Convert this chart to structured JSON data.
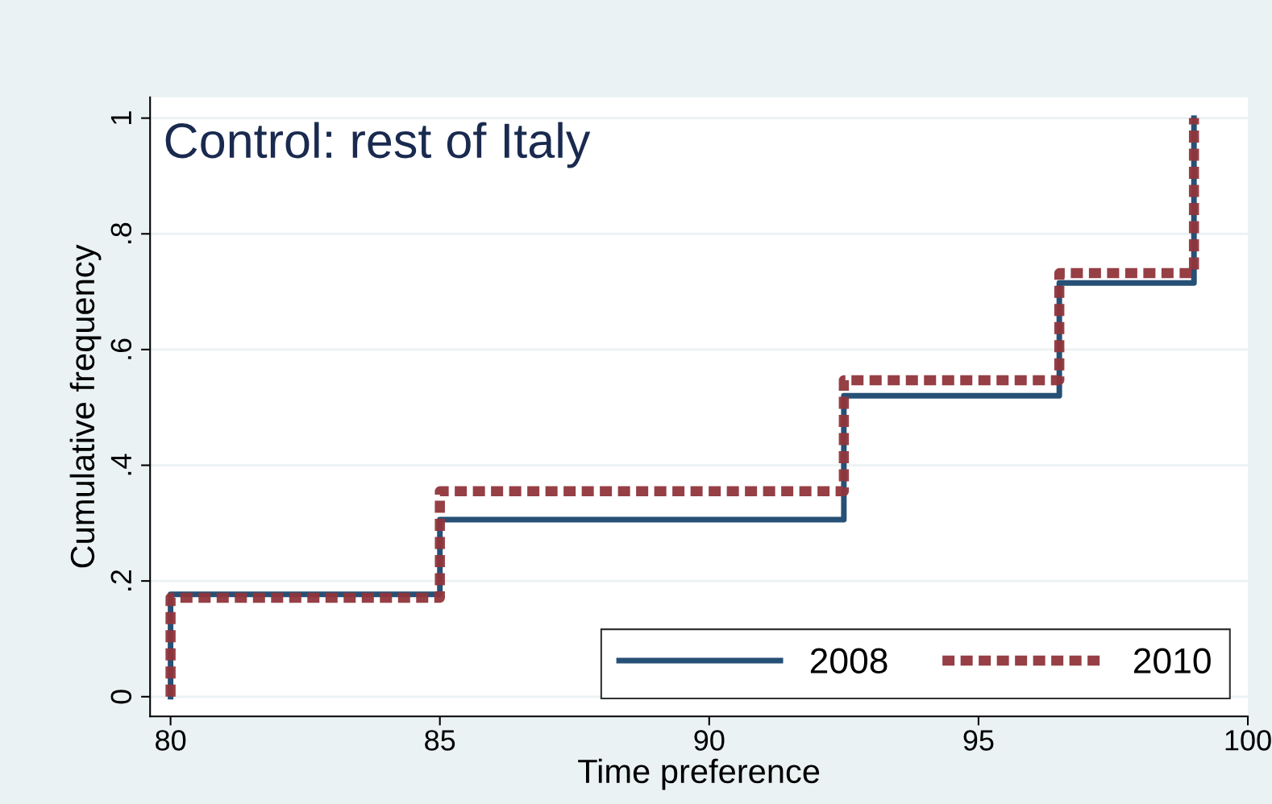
{
  "chart_data": {
    "type": "step",
    "title": "Control: rest of Italy",
    "xlabel": "Time preference",
    "ylabel": "Cumulative frequency",
    "xlim": [
      79.62,
      100
    ],
    "xticks": [
      80,
      85,
      90,
      95,
      100
    ],
    "ylim": [
      -0.034,
      1.036
    ],
    "yticks": [
      {
        "value": 0,
        "label": "0"
      },
      {
        "value": 0.2,
        "label": ".2"
      },
      {
        "value": 0.4,
        "label": ".4"
      },
      {
        "value": 0.6,
        "label": ".6"
      },
      {
        "value": 0.8,
        "label": ".8"
      },
      {
        "value": 1,
        "label": "1"
      }
    ],
    "grid": "y",
    "legend": "bottom right",
    "series": [
      {
        "name": "2008",
        "color": "#1a476f",
        "line_style": "solid",
        "x": [
          80,
          80,
          85,
          92.5,
          96.5,
          99
        ],
        "values": [
          0,
          0.177,
          0.306,
          0.52,
          0.715,
          1
        ]
      },
      {
        "name": "2010",
        "color": "#90353b",
        "line_style": "dashed",
        "x": [
          80,
          80,
          85,
          92.5,
          96.5,
          99
        ],
        "values": [
          0,
          0.171,
          0.355,
          0.547,
          0.732,
          1
        ]
      }
    ]
  }
}
